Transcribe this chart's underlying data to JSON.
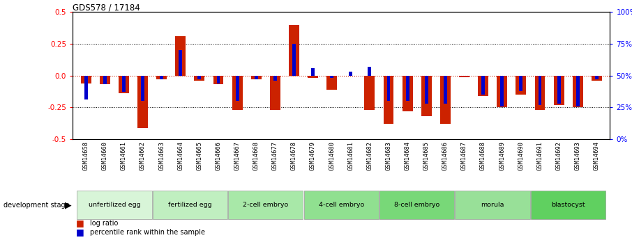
{
  "title": "GDS578 / 17184",
  "samples": [
    "GSM14658",
    "GSM14660",
    "GSM14661",
    "GSM14662",
    "GSM14663",
    "GSM14664",
    "GSM14665",
    "GSM14666",
    "GSM14667",
    "GSM14668",
    "GSM14677",
    "GSM14678",
    "GSM14679",
    "GSM14680",
    "GSM14681",
    "GSM14682",
    "GSM14683",
    "GSM14684",
    "GSM14685",
    "GSM14686",
    "GSM14687",
    "GSM14688",
    "GSM14689",
    "GSM14690",
    "GSM14691",
    "GSM14692",
    "GSM14693",
    "GSM14694"
  ],
  "log_ratio": [
    -0.06,
    -0.07,
    -0.14,
    -0.41,
    -0.03,
    0.31,
    -0.04,
    -0.07,
    -0.27,
    -0.03,
    -0.27,
    0.4,
    -0.02,
    -0.11,
    0.0,
    -0.27,
    -0.38,
    -0.28,
    -0.32,
    -0.38,
    -0.01,
    -0.16,
    -0.25,
    -0.15,
    -0.27,
    -0.23,
    -0.25,
    -0.04
  ],
  "percentile": [
    31,
    43,
    37,
    30,
    47,
    70,
    47,
    44,
    30,
    47,
    46,
    75,
    56,
    48,
    53,
    57,
    30,
    30,
    28,
    28,
    50,
    35,
    26,
    38,
    27,
    28,
    26,
    47
  ],
  "stages": [
    {
      "label": "unfertilized egg",
      "start": 0,
      "end": 4,
      "color": "#d8f5d8"
    },
    {
      "label": "fertilized egg",
      "start": 4,
      "end": 8,
      "color": "#c0efc0"
    },
    {
      "label": "2-cell embryo",
      "start": 8,
      "end": 12,
      "color": "#a8e8a8"
    },
    {
      "label": "4-cell embryo",
      "start": 12,
      "end": 16,
      "color": "#90e090"
    },
    {
      "label": "8-cell embryo",
      "start": 16,
      "end": 20,
      "color": "#78d878"
    },
    {
      "label": "morula",
      "start": 20,
      "end": 24,
      "color": "#98e098"
    },
    {
      "label": "blastocyst",
      "start": 24,
      "end": 28,
      "color": "#60d060"
    }
  ],
  "ylim": [
    -0.5,
    0.5
  ],
  "yticks_left": [
    -0.5,
    -0.25,
    0.0,
    0.25,
    0.5
  ],
  "yticks_right": [
    0,
    25,
    50,
    75,
    100
  ],
  "bar_color_red": "#cc2200",
  "bar_color_blue": "#0000cc",
  "bg_color": "#ffffff",
  "zero_line_color": "#cc2200",
  "red_bar_width": 0.55,
  "blue_bar_width": 0.18
}
